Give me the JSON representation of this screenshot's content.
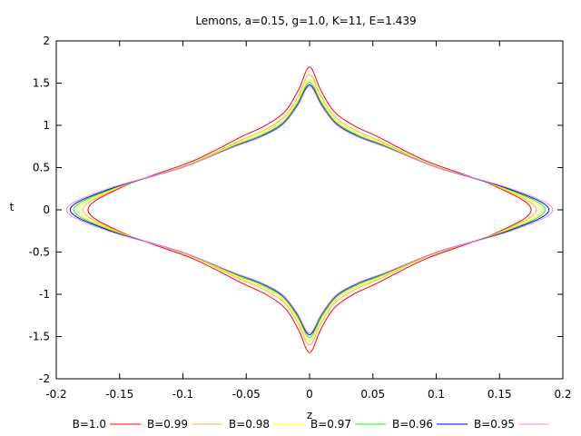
{
  "chart_data": {
    "type": "line",
    "title": "Lemons, a=0.15, g=1.0, K=11, E=1.439",
    "xlabel": "z",
    "ylabel": "t",
    "xlim": [
      -0.2,
      0.2
    ],
    "ylim": [
      -2,
      2
    ],
    "x_ticks": [
      -0.2,
      -0.15,
      -0.1,
      -0.05,
      0,
      0.05,
      0.1,
      0.15,
      0.2
    ],
    "x_tick_labels": [
      "-0.2",
      "-0.15",
      "-0.1",
      "-0.05",
      "0",
      "0.05",
      "0.1",
      "0.15",
      "0.2"
    ],
    "y_ticks": [
      -2,
      -1.5,
      -1,
      -0.5,
      0,
      0.5,
      1,
      1.5,
      2
    ],
    "y_tick_labels": [
      "-2",
      "-1.5",
      "-1",
      "-0.5",
      "0",
      "0.5",
      "1",
      "1.5",
      "2"
    ],
    "grid": false,
    "legend_position": "bottom",
    "series": [
      {
        "name": "B=1.0",
        "color": "#ff0000",
        "z_max": 0.175,
        "t_max": 1.69
      },
      {
        "name": "B=0.99",
        "color": "#ffb040",
        "z_max": 0.179,
        "t_max": 1.6
      },
      {
        "name": "B=0.98",
        "color": "#ffff00",
        "z_max": 0.183,
        "t_max": 1.55
      },
      {
        "name": "B=0.97",
        "color": "#00ff00",
        "z_max": 0.186,
        "t_max": 1.51
      },
      {
        "name": "B=0.96",
        "color": "#0000ff",
        "z_max": 0.189,
        "t_max": 1.48
      },
      {
        "name": "B=0.95",
        "color": "#ff80ff",
        "z_max": 0.192,
        "t_max": 1.46
      }
    ],
    "shape_profile": [
      {
        "t_frac": 0.0,
        "z_frac": 1.0
      },
      {
        "t_frac": 0.17,
        "z_frac": 0.83
      },
      {
        "t_frac": 0.34,
        "z_frac": 0.53
      },
      {
        "t_frac": 0.51,
        "z_frac": 0.31
      },
      {
        "t_frac": 0.59,
        "z_frac": 0.2
      },
      {
        "t_frac": 0.69,
        "z_frac": 0.11
      },
      {
        "t_frac": 0.84,
        "z_frac": 0.05
      },
      {
        "t_frac": 1.0,
        "z_frac": 0.0
      }
    ]
  }
}
